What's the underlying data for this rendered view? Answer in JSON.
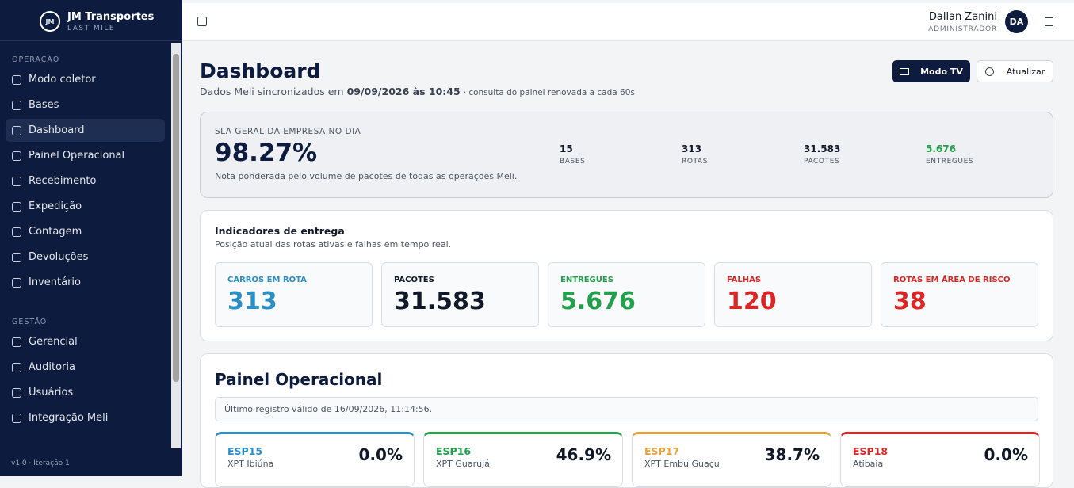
{
  "sidebar": {
    "logo": "JM",
    "brand": "JM Transportes",
    "brand_sub": "LAST MILE",
    "sections": [
      {
        "title": "OPERAÇÃO",
        "items": [
          "Modo coletor",
          "Bases",
          "Dashboard",
          "Painel Operacional",
          "Recebimento",
          "Expedição",
          "Contagem",
          "Devoluções",
          "Inventário"
        ]
      },
      {
        "title": "GESTÃO",
        "items": [
          "Gerencial",
          "Auditoria",
          "Usuários",
          "Integração Meli"
        ]
      }
    ],
    "active": "Dashboard",
    "version": "v1.0 · Iteração 1"
  },
  "header": {
    "user_name": "Dallan Zanini",
    "user_role": "ADMINISTRADOR",
    "initials": "DA"
  },
  "page": {
    "title": "Dashboard",
    "subtitle_prefix": "Dados Meli sincronizados em",
    "sync_time": "09/09/2026 às 10:45",
    "subtitle_suffix": "· consulta do painel renovada a cada 60s",
    "buttons": [
      "Modo TV",
      "Atualizar"
    ]
  },
  "sla": {
    "label": "SLA GERAL DA EMPRESA NO DIA",
    "value": "98.27%",
    "note": "Nota ponderada pelo volume de pacotes de todas as operações Meli.",
    "stats": [
      {
        "value": "15",
        "label": "BASES",
        "color": "#111827"
      },
      {
        "value": "313",
        "label": "ROTAS",
        "color": "#111827"
      },
      {
        "value": "31.583",
        "label": "PACOTES",
        "color": "#111827"
      },
      {
        "value": "5.676",
        "label": "ENTREGUES",
        "color": "#22a04b"
      }
    ]
  },
  "indicators": {
    "title": "Indicadores de entrega",
    "subtitle": "Posição atual das rotas ativas e falhas em tempo real.",
    "cards": [
      {
        "label": "CARROS EM ROTA",
        "value": "313",
        "color": "#2a8fc7"
      },
      {
        "label": "PACOTES",
        "value": "31.583",
        "color": "#111827"
      },
      {
        "label": "ENTREGUES",
        "value": "5.676",
        "color": "#22a04b"
      },
      {
        "label": "FALHAS",
        "value": "120",
        "color": "#dc2626"
      },
      {
        "label": "ROTAS EM ÁREA DE RISCO",
        "value": "38",
        "color": "#dc2626"
      }
    ]
  },
  "painel": {
    "title": "Painel Operacional",
    "last_record": "Último registro válido de 16/09/2026, 11:14:56.",
    "cards": [
      {
        "code": "ESP15",
        "name": "XPT Ibiúna",
        "pct": "0.0%",
        "color": "#2a8fc7"
      },
      {
        "code": "ESP16",
        "name": "XPT Guarujá",
        "pct": "46.9%",
        "color": "#22a04b"
      },
      {
        "code": "ESP17",
        "name": "XPT Embu Guaçu",
        "pct": "38.7%",
        "color": "#e8a23a"
      },
      {
        "code": "ESP18",
        "name": "Atibaia",
        "pct": "0.0%",
        "color": "#dc2626"
      }
    ]
  }
}
